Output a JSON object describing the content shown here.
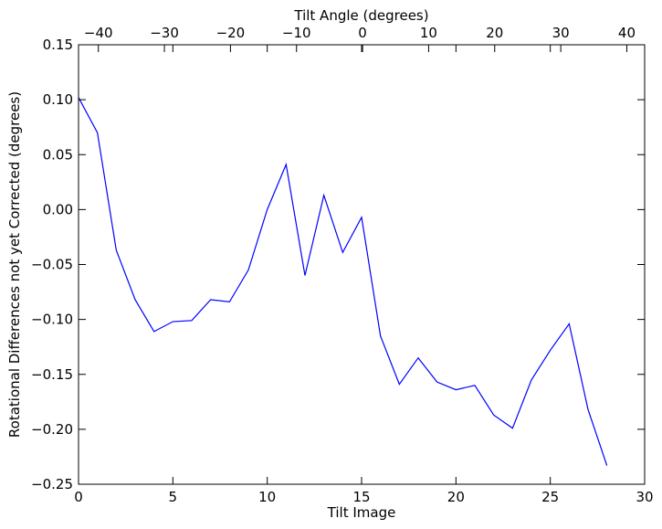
{
  "chart_data": {
    "type": "line",
    "xlabel": "Tilt Image",
    "ylabel": "Rotational Differences not yet Corrected (degrees)",
    "top_xlabel": "Tilt Angle (degrees)",
    "xlim": [
      0,
      30
    ],
    "ylim": [
      -0.25,
      0.15
    ],
    "top_xlim": [
      -43.0,
      42.7
    ],
    "x_ticks": [
      0,
      5,
      10,
      15,
      20,
      25,
      30
    ],
    "y_ticks": [
      0.15,
      0.1,
      0.05,
      0.0,
      -0.05,
      -0.1,
      -0.15,
      -0.2,
      -0.25
    ],
    "top_x_ticks": [
      -40,
      -30,
      -20,
      -10,
      0,
      10,
      20,
      30,
      40
    ],
    "x_tick_labels": [
      "0",
      "5",
      "10",
      "15",
      "20",
      "25",
      "30"
    ],
    "y_tick_labels": [
      "0.15",
      "0.10",
      "0.05",
      "0.00",
      "−0.05",
      "−0.10",
      "−0.15",
      "−0.20",
      "−0.25"
    ],
    "top_x_tick_labels": [
      "−40",
      "−30",
      "−20",
      "−10",
      "0",
      "10",
      "20",
      "30",
      "40"
    ],
    "grid": false,
    "line_color": "#0000ff",
    "series": [
      {
        "x": [
          0,
          1,
          2,
          3,
          4,
          5,
          6,
          7,
          8,
          9,
          10,
          11,
          12,
          13,
          14,
          15,
          16,
          17,
          18,
          19,
          20,
          21,
          22,
          23,
          24,
          25,
          26,
          27,
          28
        ],
        "values": [
          0.102,
          0.07,
          -0.037,
          -0.082,
          -0.111,
          -0.102,
          -0.101,
          -0.082,
          -0.084,
          -0.055,
          0.0,
          0.041,
          -0.06,
          0.013,
          -0.039,
          -0.007,
          -0.115,
          -0.159,
          -0.135,
          -0.157,
          -0.164,
          -0.16,
          -0.187,
          -0.199,
          -0.155,
          -0.128,
          -0.104,
          -0.182,
          -0.233
        ]
      }
    ]
  }
}
